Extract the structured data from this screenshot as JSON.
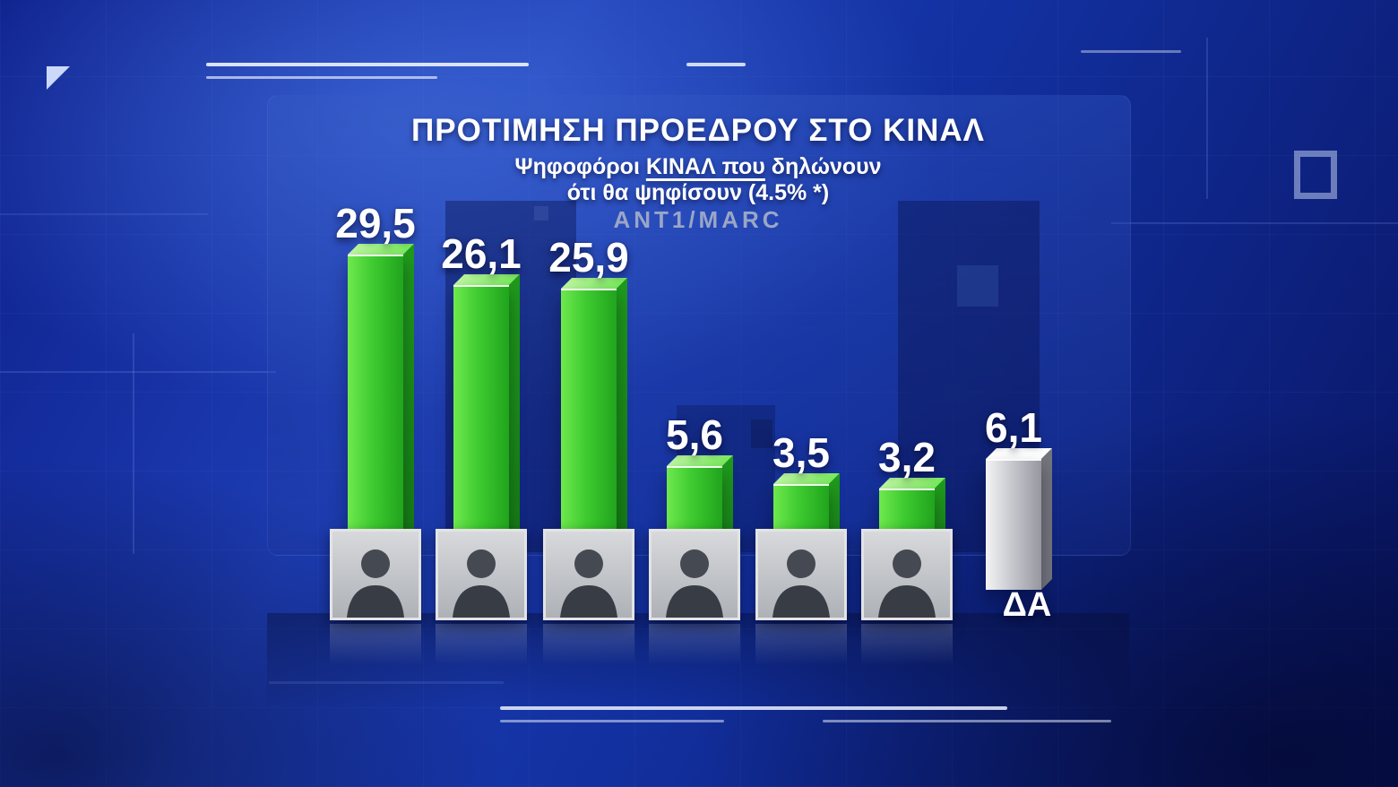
{
  "chart_data": {
    "type": "bar",
    "title": "ΠΡΟΤΙΜΗΣΗ ΠΡΟΕΔΡΟΥ ΣΤΟ ΚΙΝΑΛ",
    "subtitle": {
      "pre": "Ψηφοφόροι ",
      "underlined": "ΚΙΝΑΛ που",
      "post": " δηλώνουν"
    },
    "subtitle_line2": "ότι θα ψηφίσουν (4.5% *)",
    "source": "ANT1/MARC",
    "unit": "percent",
    "legend": "none",
    "grid": "off",
    "bars": [
      {
        "value": 29.5,
        "label": "29,5",
        "color_key": "green",
        "photo": true
      },
      {
        "value": 26.1,
        "label": "26,1",
        "color_key": "green",
        "photo": true
      },
      {
        "value": 25.9,
        "label": "25,9",
        "color_key": "green",
        "photo": true
      },
      {
        "value": 5.6,
        "label": "5,6",
        "color_key": "green",
        "photo": true
      },
      {
        "value": 3.5,
        "label": "3,5",
        "color_key": "green",
        "photo": true
      },
      {
        "value": 3.2,
        "label": "3,2",
        "color_key": "green",
        "photo": true
      },
      {
        "value": 6.1,
        "label": "6,1",
        "color_key": "grey",
        "photo": false,
        "category": "ΔΑ"
      }
    ],
    "colors": {
      "bar_green": "#3ecb30",
      "bar_grey": "#c9cad0",
      "label_text": "#ffffff",
      "background_blue": "#12309f",
      "source_text": "#9aa6c6"
    }
  }
}
